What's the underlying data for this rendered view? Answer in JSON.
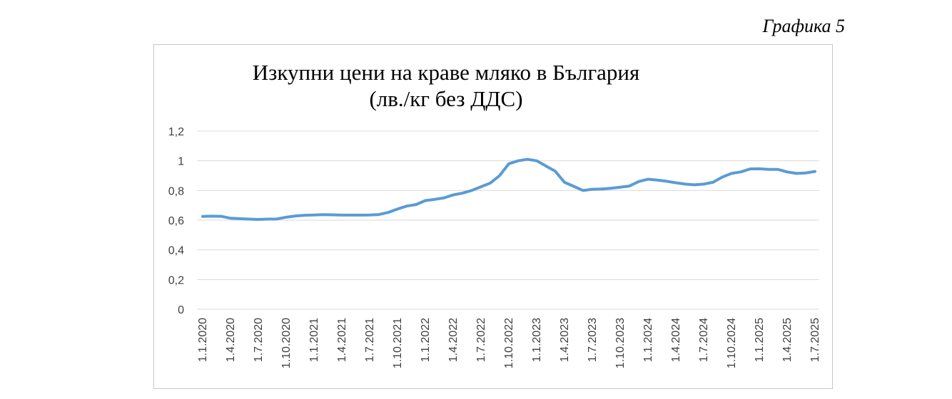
{
  "caption": "Графика 5",
  "chart_data": {
    "type": "line",
    "title_lines": [
      "Изкупни цени на краве мляко в България",
      "(лв./кг без ДДС)"
    ],
    "xlabel": "",
    "ylabel": "",
    "ylim": [
      0,
      1.2
    ],
    "yticks": [
      "0",
      "0,2",
      "0,4",
      "0,6",
      "0,8",
      "1",
      "1,2"
    ],
    "grid": true,
    "x_tick_labels": [
      "1.1.2020",
      "1.4.2020",
      "1.7.2020",
      "1.10.2020",
      "1.1.2021",
      "1.4.2021",
      "1.7.2021",
      "1.10.2021",
      "1.1.2022",
      "1.4.2022",
      "1.7.2022",
      "1.10.2022",
      "1.1.2023",
      "1.4.2023",
      "1.7.2023",
      "1.10.2023",
      "1.1.2024",
      "1.4.2024",
      "1.7.2024",
      "1.10.2024",
      "1.1.2025",
      "1.4.2025",
      "1.7.2025"
    ],
    "line_color": "#5b9bd5",
    "series": [
      {
        "x": [
          "2020-01",
          "2020-02",
          "2020-03",
          "2020-04",
          "2020-05",
          "2020-06",
          "2020-07",
          "2020-08",
          "2020-09",
          "2020-10",
          "2020-11",
          "2020-12",
          "2021-01",
          "2021-02",
          "2021-03",
          "2021-04",
          "2021-05",
          "2021-06",
          "2021-07",
          "2021-08",
          "2021-09",
          "2021-10",
          "2021-11",
          "2021-12",
          "2022-01",
          "2022-02",
          "2022-03",
          "2022-04",
          "2022-05",
          "2022-06",
          "2022-07",
          "2022-08",
          "2022-09",
          "2022-10",
          "2022-11",
          "2022-12",
          "2023-01",
          "2023-02",
          "2023-03",
          "2023-04",
          "2023-05",
          "2023-06",
          "2023-07",
          "2023-08",
          "2023-09",
          "2023-10",
          "2023-11",
          "2023-12",
          "2024-01",
          "2024-02",
          "2024-03",
          "2024-04",
          "2024-05",
          "2024-06",
          "2024-07",
          "2024-08",
          "2024-09",
          "2024-10",
          "2024-11",
          "2024-12",
          "2025-01",
          "2025-02",
          "2025-03",
          "2025-04",
          "2025-05",
          "2025-06",
          "2025-07"
        ],
        "values": [
          0.625,
          0.627,
          0.626,
          0.613,
          0.61,
          0.607,
          0.605,
          0.607,
          0.608,
          0.62,
          0.628,
          0.633,
          0.635,
          0.637,
          0.636,
          0.634,
          0.634,
          0.634,
          0.635,
          0.638,
          0.652,
          0.675,
          0.695,
          0.705,
          0.732,
          0.74,
          0.75,
          0.77,
          0.782,
          0.8,
          0.825,
          0.85,
          0.9,
          0.98,
          1.0,
          1.01,
          1.0,
          0.965,
          0.93,
          0.855,
          0.828,
          0.8,
          0.808,
          0.81,
          0.815,
          0.822,
          0.83,
          0.86,
          0.876,
          0.87,
          0.862,
          0.852,
          0.843,
          0.838,
          0.843,
          0.855,
          0.89,
          0.915,
          0.925,
          0.945,
          0.946,
          0.942,
          0.942,
          0.925,
          0.915,
          0.918,
          0.928
        ]
      }
    ]
  }
}
